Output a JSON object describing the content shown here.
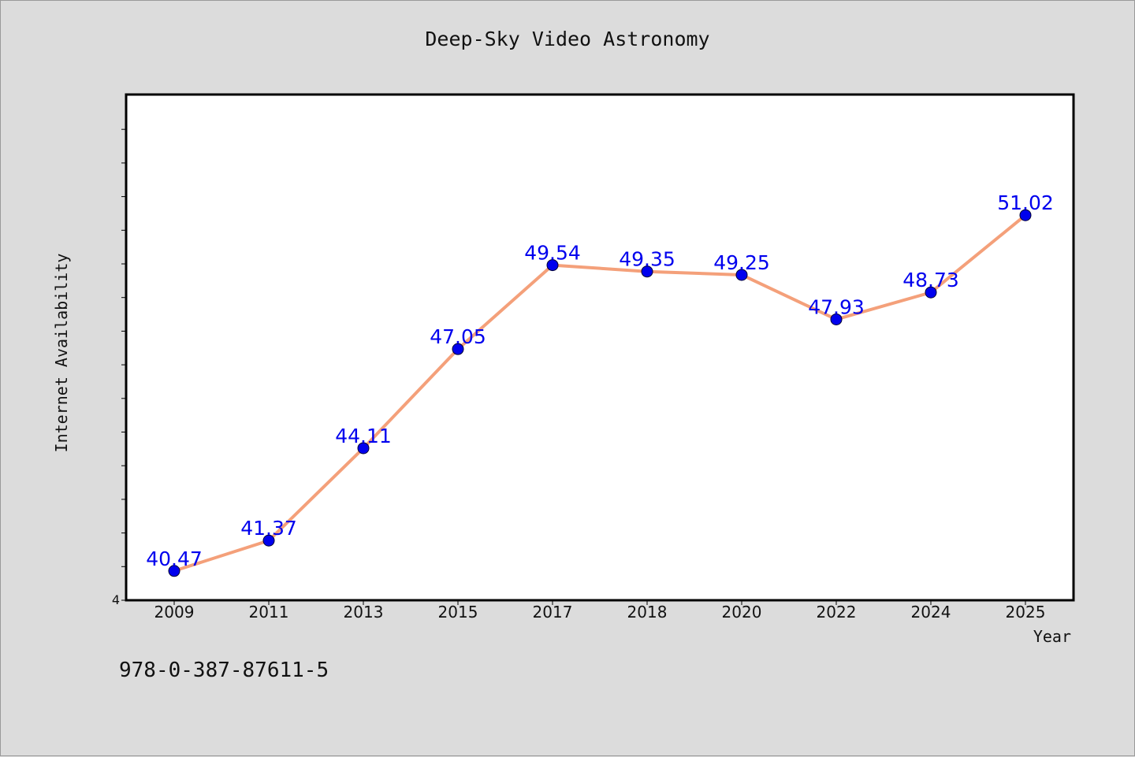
{
  "chart_data": {
    "type": "line",
    "title": "Deep-Sky Video Astronomy",
    "xlabel": "Year",
    "ylabel": "Internet Availability",
    "categories": [
      "2009",
      "2011",
      "2013",
      "2015",
      "2017",
      "2018",
      "2020",
      "2022",
      "2024",
      "2025"
    ],
    "values": [
      40.47,
      41.37,
      44.11,
      47.05,
      49.54,
      49.35,
      49.25,
      47.93,
      48.73,
      51.02
    ],
    "data_labels": [
      "40.47",
      "41.37",
      "44.11",
      "47.05",
      "49.54",
      "49.35",
      "49.25",
      "47.93",
      "48.73",
      "51.02"
    ],
    "y_tick_labels": [
      "4"
    ],
    "ylim": [
      39.6,
      54.6
    ],
    "grid": false,
    "legend": "none",
    "colors": {
      "line": "#f4a07a",
      "marker": "#0000ee",
      "data_label": "#0000ee",
      "plot_background": "#ffffff",
      "page_background": "#dcdcdc"
    }
  },
  "footer": {
    "text": "978-0-387-87611-5"
  }
}
